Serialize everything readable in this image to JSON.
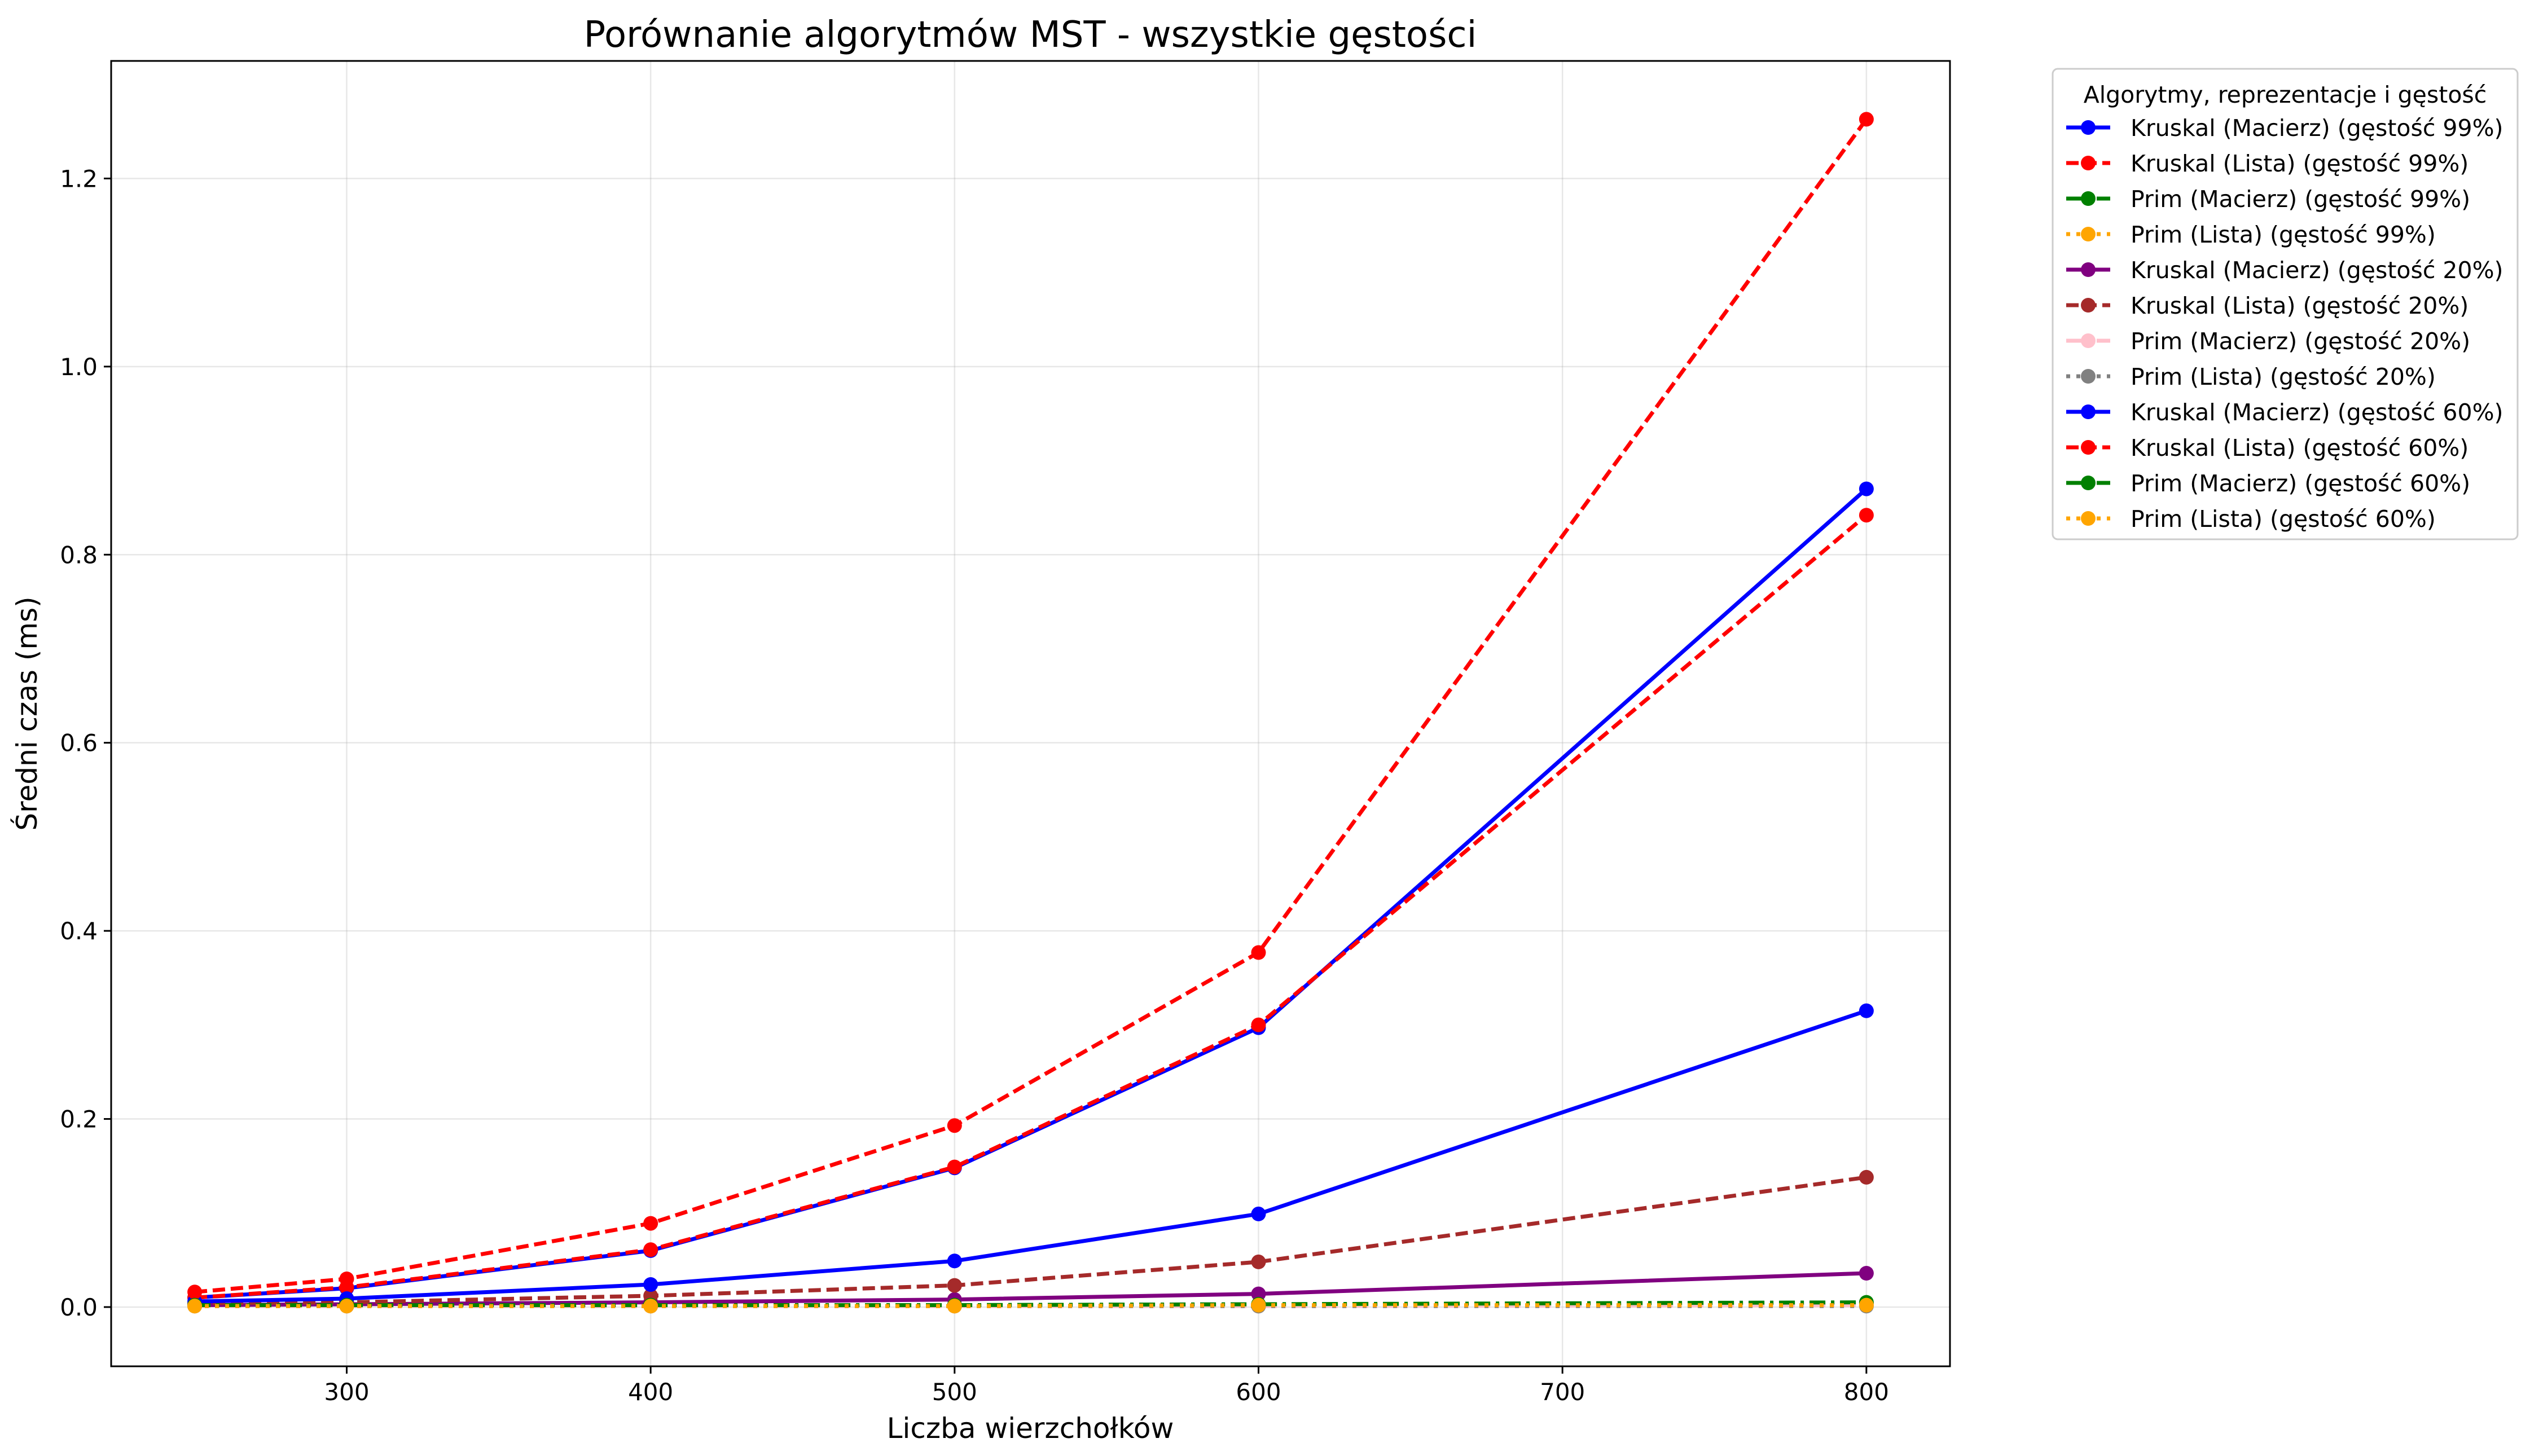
{
  "chart_data": {
    "type": "line",
    "title": "Porównanie algorytmów MST - wszystkie gęstości",
    "xlabel": "Liczba wierzchołków",
    "ylabel": "Średni czas (ms)",
    "xlim": [
      222.5,
      827.5
    ],
    "ylim": [
      -0.063,
      1.325
    ],
    "xticks": [
      300,
      400,
      500,
      600,
      700,
      800
    ],
    "yticks": [
      0.0,
      0.2,
      0.4,
      0.6,
      0.8,
      1.0,
      1.2
    ],
    "xtick_labels": [
      "300",
      "400",
      "500",
      "600",
      "700",
      "800"
    ],
    "ytick_labels": [
      "0.0",
      "0.2",
      "0.4",
      "0.6",
      "0.8",
      "1.0",
      "1.2"
    ],
    "grid": true,
    "legend": {
      "title": "Algorytmy, reprezentacje i gęstość",
      "placement": "outside-top-right"
    },
    "x": [
      250,
      300,
      400,
      500,
      600,
      800
    ],
    "series": [
      {
        "name": "Kruskal (Macierz) (gęstość 99%)",
        "color": "#0000ff",
        "style": "solid",
        "values": [
          0.01,
          0.02,
          0.06,
          0.148,
          0.297,
          0.87
        ]
      },
      {
        "name": "Kruskal (Lista) (gęstość 99%)",
        "color": "#ff0000",
        "style": "dashed",
        "values": [
          0.01,
          0.021,
          0.061,
          0.149,
          0.3,
          0.842
        ]
      },
      {
        "name": "Prim (Macierz) (gęstość 99%)",
        "color": "#008000",
        "style": "dashdot",
        "values": [
          0.002,
          0.002,
          0.002,
          0.002,
          0.003,
          0.004
        ]
      },
      {
        "name": "Prim (Lista) (gęstość 99%)",
        "color": "#ffa500",
        "style": "dotted",
        "values": [
          0.001,
          0.001,
          0.001,
          0.001,
          0.001,
          0.002
        ]
      },
      {
        "name": "Kruskal (Macierz) (gęstość 20%)",
        "color": "#800080",
        "style": "solid",
        "values": [
          0.002,
          0.003,
          0.005,
          0.008,
          0.014,
          0.036
        ]
      },
      {
        "name": "Kruskal (Lista) (gęstość 20%)",
        "color": "#a52a2a",
        "style": "dashed",
        "values": [
          0.004,
          0.005,
          0.012,
          0.023,
          0.048,
          0.138
        ]
      },
      {
        "name": "Prim (Macierz) (gęstość 20%)",
        "color": "#ffc0cb",
        "style": "dashdot",
        "values": [
          0.001,
          0.001,
          0.001,
          0.001,
          0.001,
          0.002
        ]
      },
      {
        "name": "Prim (Lista) (gęstość 20%)",
        "color": "#808080",
        "style": "dotted",
        "values": [
          0.001,
          0.001,
          0.001,
          0.001,
          0.001,
          0.001
        ]
      },
      {
        "name": "Kruskal (Macierz) (gęstość 60%)",
        "color": "#0000ff",
        "style": "solid",
        "values": [
          0.006,
          0.009,
          0.024,
          0.049,
          0.099,
          0.315
        ]
      },
      {
        "name": "Kruskal (Lista) (gęstość 60%)",
        "color": "#ff0000",
        "style": "dashed",
        "values": [
          0.016,
          0.03,
          0.089,
          0.193,
          0.377,
          1.263
        ]
      },
      {
        "name": "Prim (Macierz) (gęstość 60%)",
        "color": "#008000",
        "style": "dashdot",
        "values": [
          0.002,
          0.002,
          0.002,
          0.002,
          0.003,
          0.005
        ]
      },
      {
        "name": "Prim (Lista) (gęstość 60%)",
        "color": "#ffa500",
        "style": "dotted",
        "values": [
          0.001,
          0.001,
          0.001,
          0.001,
          0.002,
          0.002
        ]
      }
    ]
  }
}
